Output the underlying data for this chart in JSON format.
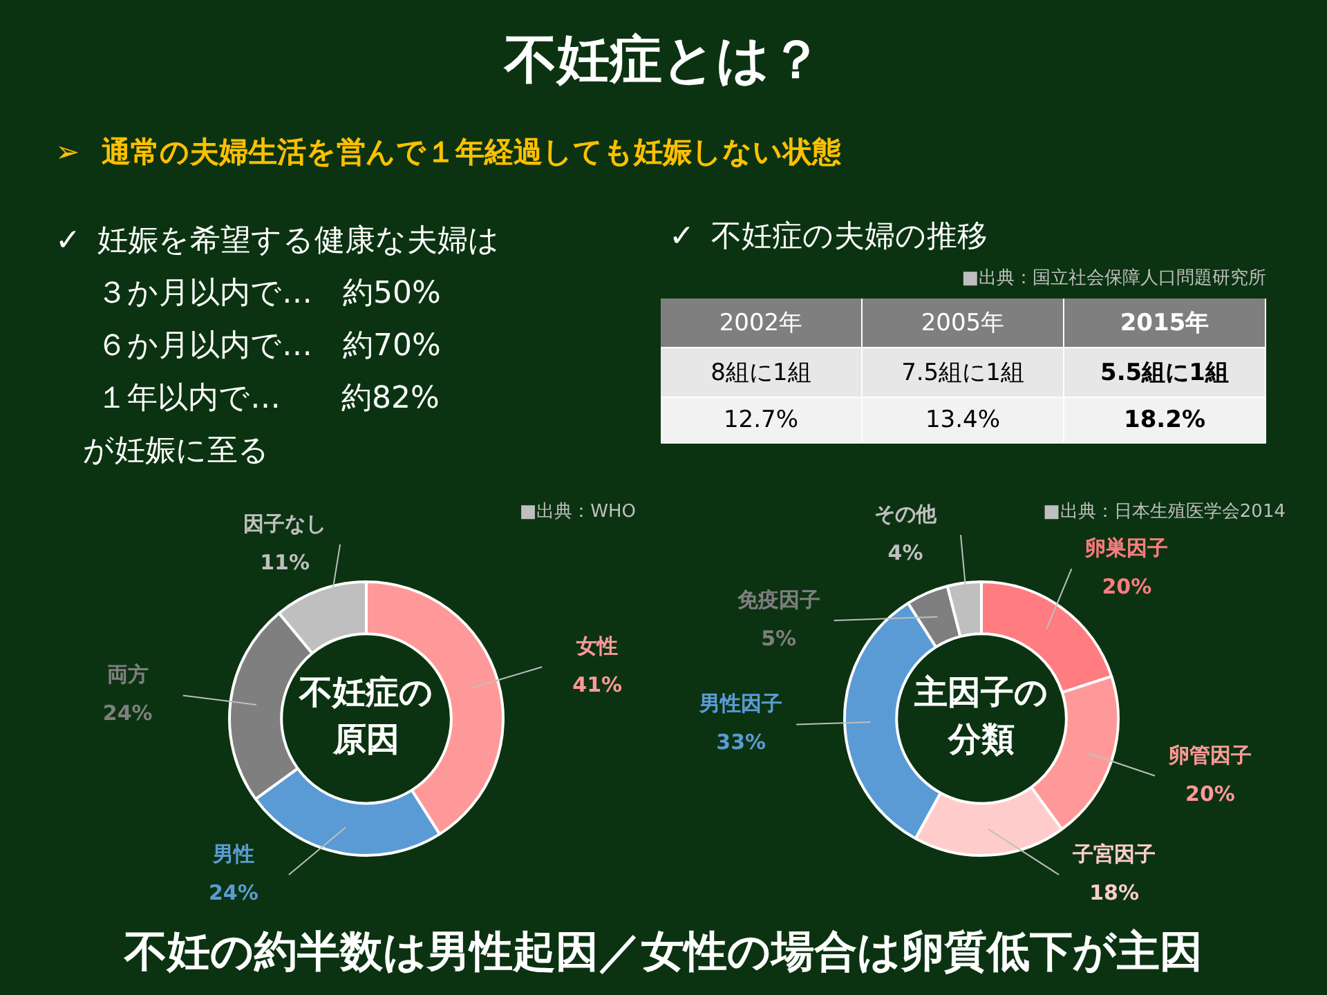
{
  "chart_data": [
    {
      "type": "other",
      "title": "不妊症とは？",
      "subtitle": "通常の夫婦生活を営んで１年経過しても妊娠しない状態",
      "annotations": [
        "➢",
        "✓",
        "✓",
        "妊娠を希望する健康な夫婦は",
        "３か月以内で…　約50%",
        "６か月以内で…　約70%",
        "１年以内で…　　約82%",
        "が妊娠に至る",
        "不妊症の夫婦の推移",
        "■出典：国立社会保障人口問題研究所",
        "2002年",
        "2005年",
        "2015年",
        "8組に1組",
        "7.5組に1組",
        "5.5組に1組",
        "12.7%",
        "13.4%",
        "18.2%",
        "不妊の約半数は男性起因／女性の場合は卵質低下が主因"
      ]
    },
    {
      "type": "donut",
      "title": "不妊症の原因",
      "categories": [
        "女性",
        "男性",
        "両方",
        "因子なし"
      ],
      "values": [
        41,
        24,
        24,
        11
      ],
      "colors": [
        "#ff9999",
        "#5b9bd5",
        "#7f7f7f",
        "#bfbfbf"
      ],
      "value_labels": [
        "41%",
        "24%",
        "24%",
        "11%"
      ],
      "annotations": [
        "■出典：WHO"
      ]
    },
    {
      "type": "donut",
      "title": "主因子の分類",
      "categories": [
        "卵巣因子",
        "卵管因子",
        "子宮因子",
        "男性因子",
        "免疫因子",
        "その他"
      ],
      "values": [
        20,
        20,
        18,
        33,
        5,
        4
      ],
      "colors": [
        "#ff7c80",
        "#ff9999",
        "#ffcccc",
        "#5b9bd5",
        "#7f7f7f",
        "#bfbfbf"
      ],
      "value_labels": [
        "20%",
        "20%",
        "18%",
        "33%",
        "5%",
        "4%"
      ],
      "annotations": [
        "■出典：日本生殖医学会2014"
      ]
    }
  ]
}
